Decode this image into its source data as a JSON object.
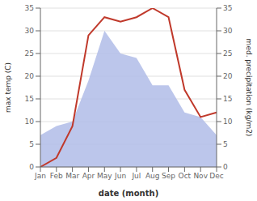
{
  "chart_data": {
    "type": "line",
    "categories": [
      "Jan",
      "Feb",
      "Mar",
      "Apr",
      "May",
      "Jun",
      "Jul",
      "Aug",
      "Sep",
      "Oct",
      "Nov",
      "Dec"
    ],
    "xlabel": "date (month)",
    "ylabel": "max temp (C)",
    "y2label": "med. precipitation (kg/m2)",
    "ylim": [
      0,
      35
    ],
    "yticks": [
      0,
      5,
      10,
      15,
      20,
      25,
      30,
      35
    ],
    "y2lim": [
      0,
      35
    ],
    "y2ticks": [
      0,
      5,
      10,
      15,
      20,
      25,
      30,
      35
    ],
    "grid": true,
    "series": [
      {
        "type": "area",
        "axis": "y2",
        "color": "#b0bce8",
        "values": [
          7,
          9,
          10,
          19,
          30,
          25,
          24,
          18,
          18,
          12,
          11,
          7
        ]
      },
      {
        "type": "line",
        "color": "#c0392b",
        "values": [
          0,
          2,
          9,
          29,
          33,
          32,
          33,
          35,
          33,
          17,
          11,
          12
        ]
      }
    ]
  }
}
